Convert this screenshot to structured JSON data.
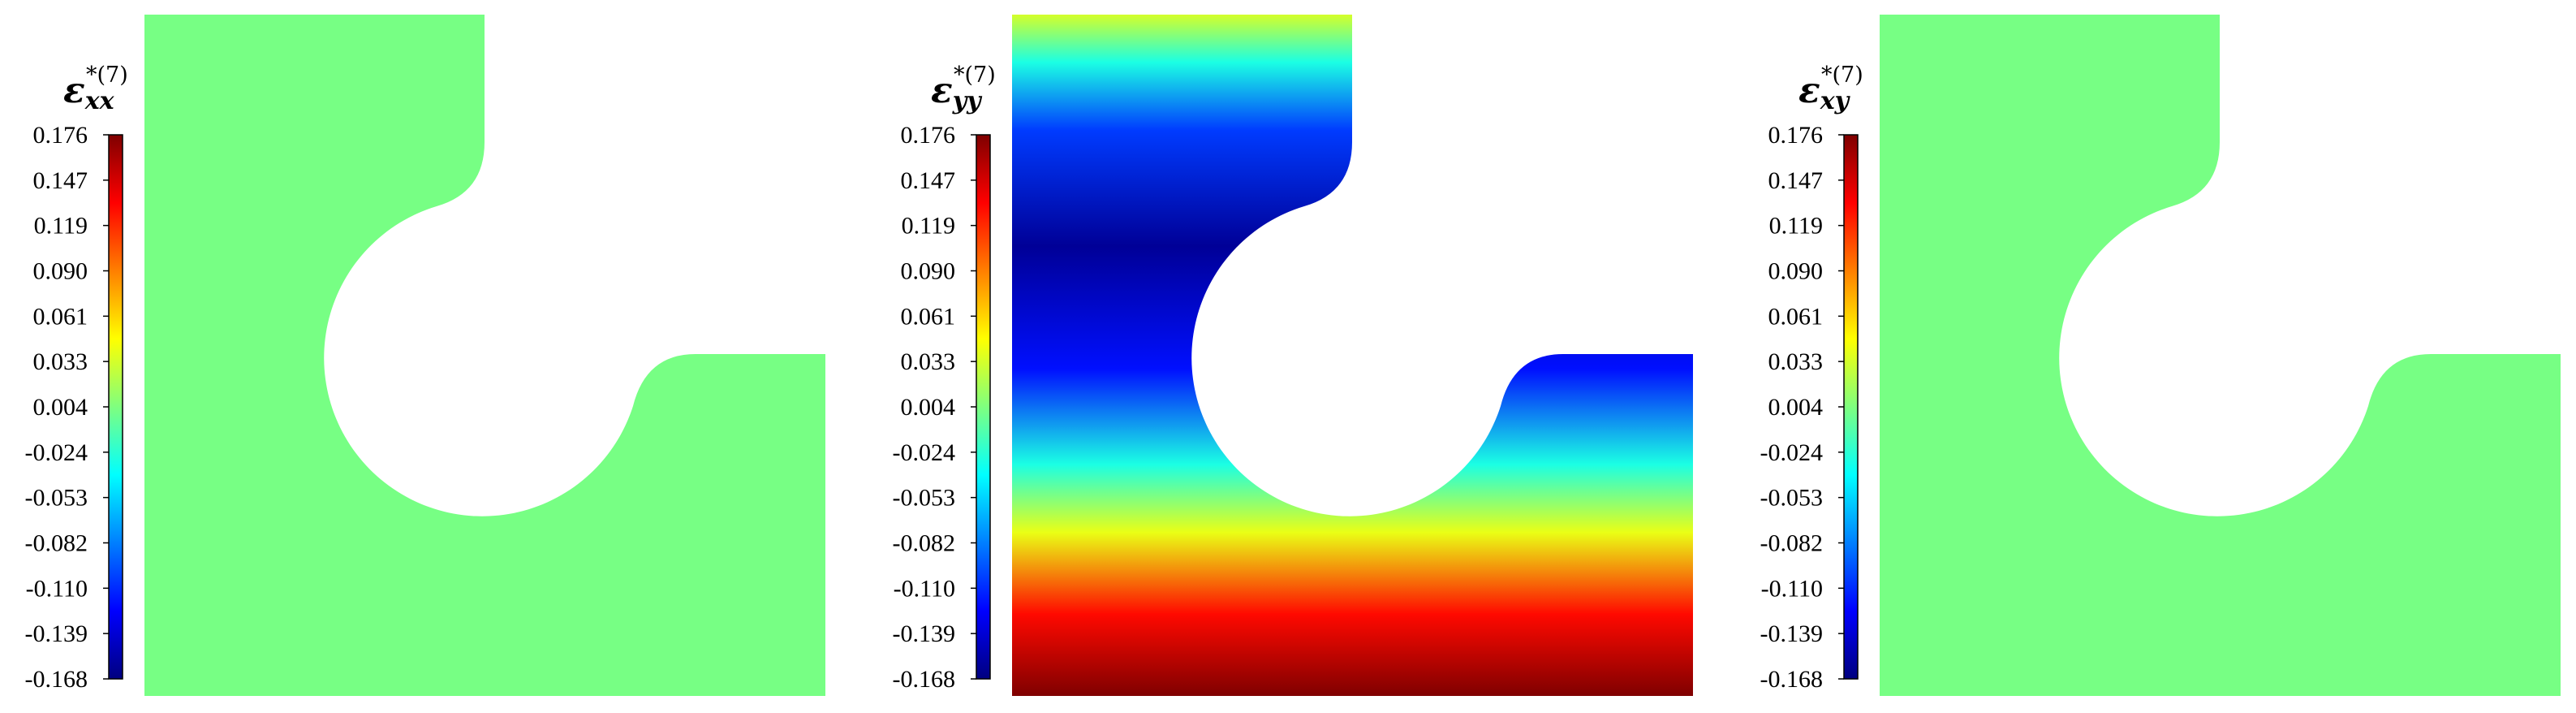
{
  "colormap": [
    "#00007f",
    "#0000ff",
    "#007fff",
    "#00ffff",
    "#7fff7f",
    "#ffff00",
    "#ff7f00",
    "#ff0000",
    "#7f0000"
  ],
  "chart_data": [
    {
      "type": "heatmap",
      "field": "strain component",
      "symbol": "ε",
      "subscript": "xx",
      "superscript": "*(7)",
      "range": [
        -0.168,
        0.176
      ],
      "ticks": [
        "0.176",
        "0.147",
        "0.119",
        "0.090",
        "0.061",
        "0.033",
        "0.004",
        "-0.024",
        "-0.053",
        "-0.082",
        "-0.110",
        "-0.139",
        "-0.168"
      ],
      "distribution": "uniform",
      "value": 0.0,
      "fill_color": "#77ff84"
    },
    {
      "type": "heatmap",
      "field": "strain component",
      "symbol": "ε",
      "subscript": "yy",
      "superscript": "*(7)",
      "range": [
        -0.168,
        0.176
      ],
      "ticks": [
        "0.176",
        "0.147",
        "0.119",
        "0.090",
        "0.061",
        "0.033",
        "0.004",
        "-0.024",
        "-0.053",
        "-0.082",
        "-0.110",
        "-0.139",
        "-0.168"
      ],
      "distribution": "vertical gradient",
      "profile_top_to_bottom": [
        {
          "pos": 0.0,
          "value": 0.033
        },
        {
          "pos": 0.07,
          "value": -0.03
        },
        {
          "pos": 0.17,
          "value": -0.105
        },
        {
          "pos": 0.34,
          "value": -0.16
        },
        {
          "pos": 0.52,
          "value": -0.12
        },
        {
          "pos": 0.66,
          "value": -0.03
        },
        {
          "pos": 0.76,
          "value": 0.04
        },
        {
          "pos": 0.88,
          "value": 0.13
        },
        {
          "pos": 1.0,
          "value": 0.176
        }
      ]
    },
    {
      "type": "heatmap",
      "field": "strain component",
      "symbol": "ε",
      "subscript": "xy",
      "superscript": "*(7)",
      "range": [
        -0.168,
        0.176
      ],
      "ticks": [
        "0.176",
        "0.147",
        "0.119",
        "0.090",
        "0.061",
        "0.033",
        "0.004",
        "-0.024",
        "-0.053",
        "-0.082",
        "-0.110",
        "-0.139",
        "-0.168"
      ],
      "distribution": "uniform",
      "value": 0.0,
      "fill_color": "#77ff84"
    }
  ]
}
